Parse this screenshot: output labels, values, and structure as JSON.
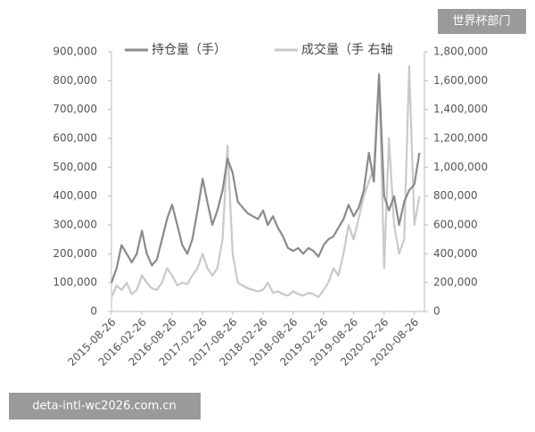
{
  "chart_data": {
    "type": "line",
    "watermarks": [
      "世界杯部门",
      "deta-intl-wc2026.com.cn"
    ],
    "x": [
      "2015-08-26",
      "2015-09-26",
      "2015-10-26",
      "2015-11-26",
      "2015-12-26",
      "2016-01-26",
      "2016-02-26",
      "2016-03-26",
      "2016-04-26",
      "2016-05-26",
      "2016-06-26",
      "2016-07-26",
      "2016-08-26",
      "2016-09-26",
      "2016-10-26",
      "2016-11-26",
      "2016-12-26",
      "2017-01-26",
      "2017-02-26",
      "2017-03-26",
      "2017-04-26",
      "2017-05-26",
      "2017-06-26",
      "2017-07-26",
      "2017-08-26",
      "2017-09-26",
      "2017-10-26",
      "2017-11-26",
      "2017-12-26",
      "2018-01-26",
      "2018-02-26",
      "2018-03-26",
      "2018-04-26",
      "2018-05-26",
      "2018-06-26",
      "2018-07-26",
      "2018-08-26",
      "2018-09-26",
      "2018-10-26",
      "2018-11-26",
      "2018-12-26",
      "2019-01-26",
      "2019-02-26",
      "2019-03-26",
      "2019-04-26",
      "2019-05-26",
      "2019-06-26",
      "2019-07-26",
      "2019-08-26",
      "2019-09-26",
      "2019-10-26",
      "2019-11-26",
      "2019-12-26",
      "2020-01-26",
      "2020-02-26",
      "2020-03-26",
      "2020-04-26",
      "2020-05-26",
      "2020-06-26",
      "2020-07-26",
      "2020-08-26",
      "2020-09-26"
    ],
    "xlim": [
      "2015-08-26",
      "2020-10-26"
    ],
    "xticks": [
      "2015-08-26",
      "2016-02-26",
      "2016-08-26",
      "2017-02-26",
      "2017-08-26",
      "2018-02-26",
      "2018-08-26",
      "2019-02-26",
      "2019-08-26",
      "2020-02-26",
      "2020-08-26"
    ],
    "ylim": [
      0,
      900000
    ],
    "yticks": [
      0,
      {
        "value": 100000,
        "label": "100,000"
      },
      {
        "value": 200000,
        "label": "200,000"
      },
      {
        "value": 300000,
        "label": "300,000"
      },
      {
        "value": 400000,
        "label": "400,000"
      },
      {
        "value": 500000,
        "label": "500,000"
      },
      {
        "value": 600000,
        "label": "600,000"
      },
      {
        "value": 700000,
        "label": "700,000"
      },
      {
        "value": 800000,
        "label": "800,000"
      },
      {
        "value": 900000,
        "label": "900,000"
      }
    ],
    "y2lim": [
      0,
      1800000
    ],
    "y2ticks": [
      0,
      {
        "value": 200000,
        "label": "200,000"
      },
      {
        "value": 400000,
        "label": "400,000"
      },
      {
        "value": 600000,
        "label": "600,000"
      },
      {
        "value": 800000,
        "label": "800,000"
      },
      {
        "value": 1000000,
        "label": "1,000,000"
      },
      {
        "value": 1200000,
        "label": "1,200,000"
      },
      {
        "value": 1400000,
        "label": "1,400,000"
      },
      {
        "value": 1600000,
        "label": "1,600,000"
      },
      {
        "value": 1800000,
        "label": "1,800,000"
      }
    ],
    "grid": false,
    "series": [
      {
        "name": "持仓量（手）",
        "color": "#8a8a8a",
        "values": [
          100000,
          150000,
          230000,
          200000,
          170000,
          200000,
          280000,
          200000,
          160000,
          180000,
          250000,
          320000,
          370000,
          300000,
          230000,
          200000,
          250000,
          350000,
          460000,
          380000,
          300000,
          350000,
          420000,
          530000,
          480000,
          380000,
          360000,
          340000,
          330000,
          320000,
          350000,
          300000,
          330000,
          290000,
          260000,
          220000,
          210000,
          220000,
          200000,
          220000,
          210000,
          190000,
          230000,
          250000,
          260000,
          290000,
          320000,
          370000,
          330000,
          360000,
          420000,
          550000,
          450000,
          820000,
          400000,
          350000,
          400000,
          300000,
          380000,
          420000,
          440000,
          550000
        ]
      },
      {
        "name": "成交量（手 右轴",
        "color": "#c9c9c9",
        "axis": "y2",
        "values": [
          100000,
          180000,
          150000,
          200000,
          120000,
          150000,
          250000,
          200000,
          160000,
          150000,
          200000,
          300000,
          250000,
          180000,
          200000,
          190000,
          250000,
          300000,
          400000,
          300000,
          250000,
          300000,
          500000,
          1150000,
          400000,
          200000,
          180000,
          160000,
          150000,
          140000,
          150000,
          200000,
          130000,
          140000,
          120000,
          110000,
          140000,
          120000,
          110000,
          130000,
          120000,
          100000,
          150000,
          200000,
          300000,
          250000,
          400000,
          600000,
          500000,
          650000,
          800000,
          900000,
          1000000,
          1650000,
          300000,
          1200000,
          600000,
          400000,
          500000,
          1700000,
          600000,
          800000
        ]
      }
    ]
  }
}
